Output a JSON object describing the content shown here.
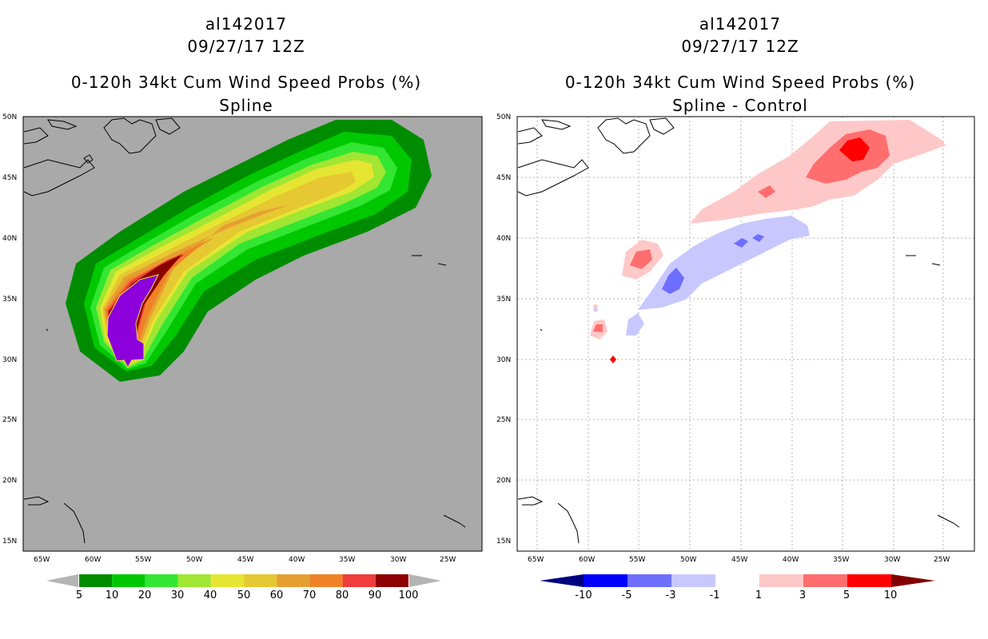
{
  "left_panel": {
    "storm_id": "al142017",
    "date": "09/27/17 12Z",
    "product": "0-120h 34kt Cum Wind Speed Probs (%)",
    "subtitle": "Spline",
    "background_color": "#a9a9a9",
    "colorbar": {
      "labels": [
        "5",
        "10",
        "20",
        "30",
        "40",
        "50",
        "60",
        "70",
        "80",
        "90",
        "100"
      ],
      "colors": [
        "#008c00",
        "#00c800",
        "#32e632",
        "#a0e632",
        "#e6e632",
        "#e6c832",
        "#e6a032",
        "#f08228",
        "#f03c3c",
        "#8c0000",
        "#8c00dc"
      ]
    }
  },
  "right_panel": {
    "storm_id": "al142017",
    "date": "09/27/17 12Z",
    "product": "0-120h 34kt Cum Wind Speed Probs (%)",
    "subtitle": "Spline - Control",
    "background_color": "#ffffff",
    "colorbar": {
      "labels": [
        "-10",
        "-5",
        "-3",
        "-1",
        "1",
        "3",
        "5",
        "10"
      ],
      "colors": [
        "#000080",
        "#0000ff",
        "#6e6eff",
        "#c8c8ff",
        "#ffffff",
        "#ffc8c8",
        "#ff6e6e",
        "#ff0000",
        "#800000"
      ]
    }
  },
  "axes": {
    "lon_labels": [
      "65W",
      "60W",
      "55W",
      "50W",
      "45W",
      "40W",
      "35W",
      "30W",
      "25W"
    ],
    "lat_labels": [
      "50N",
      "45N",
      "40N",
      "35N",
      "30N",
      "25N",
      "20N",
      "15N"
    ]
  }
}
